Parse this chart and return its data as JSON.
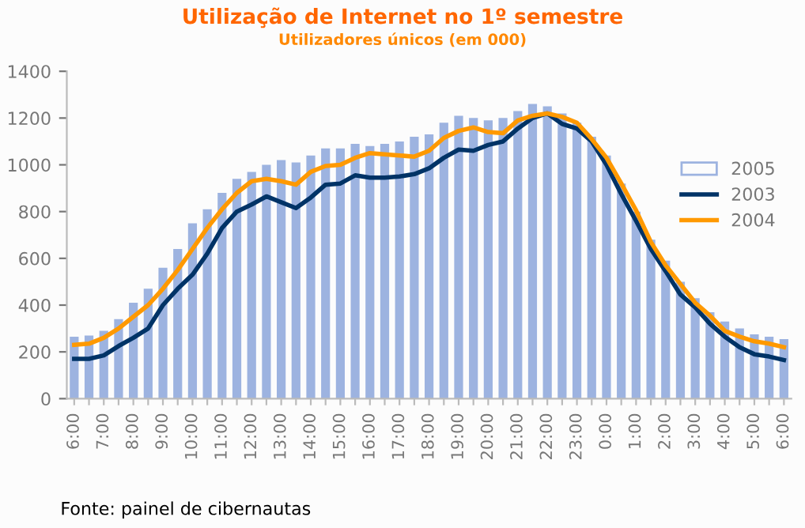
{
  "chart_data": {
    "type": "bar",
    "title": "Utilização de Internet no 1º semestre",
    "subtitle": "Utilizadores únicos (em 000)",
    "categories": [
      "6:00",
      null,
      "7:00",
      null,
      "8:00",
      null,
      "9:00",
      null,
      "10:00",
      null,
      "11:00",
      null,
      "12:00",
      null,
      "13:00",
      null,
      "14:00",
      null,
      "15:00",
      null,
      "16:00",
      null,
      "17:00",
      null,
      "18:00",
      null,
      "19:00",
      null,
      "20:00",
      null,
      "21:00",
      null,
      "22:00",
      null,
      "23:00",
      null,
      "0:00",
      null,
      "1:00",
      null,
      "2:00",
      null,
      "3:00",
      null,
      "4:00",
      null,
      "5:00",
      null,
      "6:00"
    ],
    "series": [
      {
        "name": "2005",
        "color": "#9db3e0",
        "values": [
          265,
          270,
          290,
          340,
          410,
          470,
          560,
          640,
          750,
          810,
          880,
          940,
          970,
          1000,
          1020,
          1010,
          1040,
          1070,
          1070,
          1090,
          1080,
          1090,
          1100,
          1120,
          1130,
          1180,
          1210,
          1200,
          1190,
          1200,
          1230,
          1260,
          1250,
          1220,
          1180,
          1120,
          1040,
          920,
          800,
          680,
          590,
          500,
          430,
          370,
          330,
          300,
          275,
          265,
          255
        ]
      },
      {
        "name": "2003",
        "type": "line",
        "color": "#003366",
        "values": [
          170,
          170,
          185,
          225,
          260,
          300,
          400,
          470,
          530,
          620,
          730,
          800,
          830,
          865,
          840,
          815,
          860,
          915,
          920,
          955,
          945,
          945,
          950,
          960,
          985,
          1030,
          1065,
          1060,
          1085,
          1100,
          1155,
          1200,
          1220,
          1175,
          1155,
          1100,
          1000,
          875,
          760,
          640,
          545,
          445,
          390,
          320,
          265,
          220,
          190,
          180,
          165
        ]
      },
      {
        "name": "2004",
        "type": "line",
        "color": "#ff9900",
        "values": [
          230,
          235,
          260,
          300,
          350,
          400,
          470,
          550,
          640,
          730,
          810,
          880,
          930,
          940,
          930,
          915,
          970,
          995,
          1000,
          1030,
          1050,
          1045,
          1040,
          1035,
          1060,
          1115,
          1145,
          1160,
          1140,
          1135,
          1190,
          1210,
          1220,
          1205,
          1180,
          1110,
          1030,
          920,
          805,
          670,
          570,
          490,
          410,
          355,
          290,
          265,
          245,
          235,
          220
        ]
      }
    ],
    "ylim": [
      0,
      1400
    ],
    "yticks": [
      0,
      200,
      400,
      600,
      800,
      1000,
      1200,
      1400
    ],
    "grid": false,
    "legend": "right",
    "marker": "none",
    "line_style": "solid",
    "annotations": [
      "Fonte: painel de cibernautas"
    ]
  }
}
